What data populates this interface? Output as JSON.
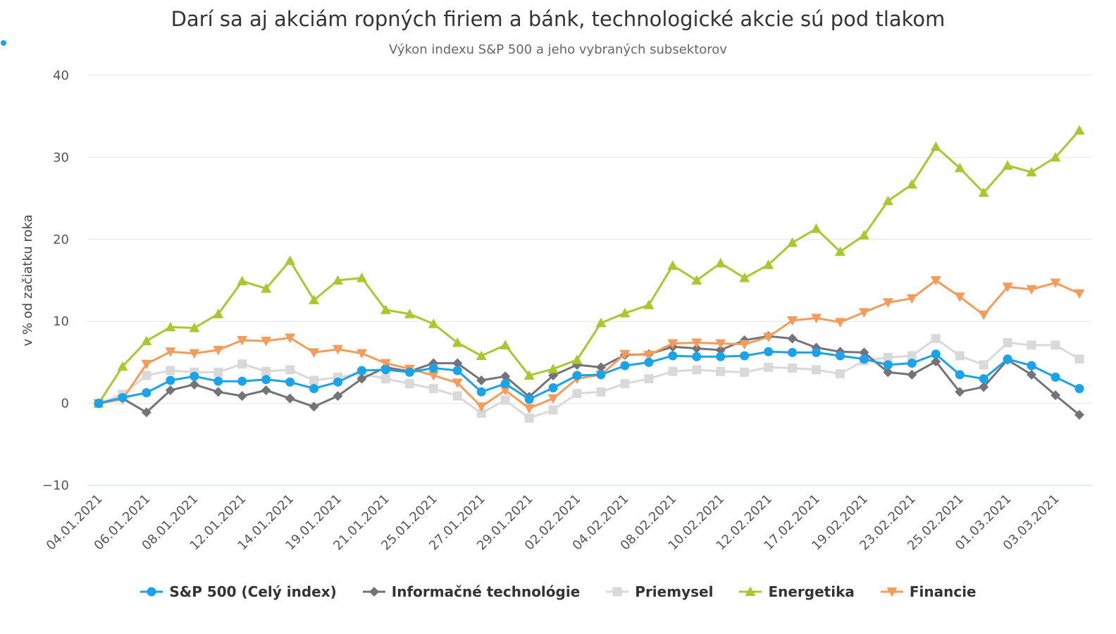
{
  "header": {
    "title": "Darí sa aj akciám ropných firiem a bánk, technologické akcie sú pod tlakom",
    "subtitle": "Výkon indexu S&P 500 a jeho vybraných subsektorov",
    "dot_color": "#1aa3e8"
  },
  "chart_data": {
    "type": "line",
    "title": "Darí sa aj akciám ropných firiem a bánk, technologické akcie sú pod tlakom",
    "subtitle": "Výkon indexu S&P 500 a jeho vybraných subsektorov",
    "ylabel": "v % od začiatku roka",
    "xlabel": "",
    "ylim": [
      -10,
      40
    ],
    "yticks": [
      -10,
      0,
      10,
      20,
      30,
      40
    ],
    "ytick_labels": [
      "−10",
      "0",
      "10",
      "20",
      "30",
      "40"
    ],
    "grid": true,
    "legend_position": "bottom",
    "x": [
      "04.01.2021",
      "05.01.2021",
      "06.01.2021",
      "07.01.2021",
      "08.01.2021",
      "11.01.2021",
      "12.01.2021",
      "13.01.2021",
      "14.01.2021",
      "15.01.2021",
      "19.01.2021",
      "20.01.2021",
      "21.01.2021",
      "22.01.2021",
      "25.01.2021",
      "26.01.2021",
      "27.01.2021",
      "28.01.2021",
      "29.01.2021",
      "01.02.2021",
      "02.02.2021",
      "03.02.2021",
      "04.02.2021",
      "05.02.2021",
      "08.02.2021",
      "09.02.2021",
      "10.02.2021",
      "11.02.2021",
      "12.02.2021",
      "16.02.2021",
      "17.02.2021",
      "18.02.2021",
      "19.02.2021",
      "22.02.2021",
      "23.02.2021",
      "24.02.2021",
      "25.02.2021",
      "26.02.2021",
      "01.03.2021",
      "02.03.2021",
      "03.03.2021",
      "04.03.2021"
    ],
    "xtick_labels": [
      "04.01.2021",
      "06.01.2021",
      "08.01.2021",
      "12.01.2021",
      "14.01.2021",
      "19.01.2021",
      "21.01.2021",
      "25.01.2021",
      "27.01.2021",
      "29.01.2021",
      "02.02.2021",
      "04.02.2021",
      "08.02.2021",
      "10.02.2021",
      "12.02.2021",
      "17.02.2021",
      "19.02.2021",
      "23.02.2021",
      "25.02.2021",
      "01.03.2021",
      "03.03.2021"
    ],
    "series": [
      {
        "name": "S&P 500 (Celý index)",
        "color": "#1aa3e8",
        "marker": "circle",
        "values": [
          0.0,
          0.7,
          1.3,
          2.8,
          3.3,
          2.7,
          2.7,
          2.9,
          2.6,
          1.8,
          2.6,
          4.0,
          4.1,
          3.8,
          4.3,
          4.0,
          1.4,
          2.4,
          0.5,
          1.9,
          3.4,
          3.5,
          4.6,
          5.0,
          5.8,
          5.7,
          5.7,
          5.8,
          6.3,
          6.2,
          6.2,
          5.8,
          5.4,
          4.7,
          4.9,
          6.0,
          3.5,
          3.0,
          5.4,
          4.6,
          3.2,
          1.8
        ]
      },
      {
        "name": "Informačné technológie",
        "color": "#737478",
        "marker": "diamond",
        "values": [
          0.0,
          0.6,
          -1.1,
          1.6,
          2.3,
          1.4,
          0.9,
          1.6,
          0.6,
          -0.4,
          0.9,
          3.0,
          4.4,
          3.9,
          4.9,
          4.9,
          2.8,
          3.3,
          0.8,
          3.4,
          4.7,
          4.4,
          5.9,
          6.0,
          6.9,
          6.7,
          6.5,
          7.7,
          8.2,
          7.9,
          6.8,
          6.3,
          6.2,
          3.8,
          3.5,
          5.1,
          1.4,
          2.0,
          5.3,
          3.5,
          1.0,
          -1.4
        ]
      },
      {
        "name": "Priemysel",
        "color": "#d9d9d9",
        "marker": "square",
        "values": [
          0.0,
          1.1,
          3.4,
          4.0,
          3.8,
          3.8,
          4.8,
          3.9,
          4.1,
          2.8,
          3.2,
          3.6,
          3.0,
          2.4,
          1.8,
          0.9,
          -1.2,
          0.4,
          -1.8,
          -0.8,
          1.2,
          1.4,
          2.4,
          3.0,
          3.9,
          4.1,
          3.9,
          3.8,
          4.4,
          4.3,
          4.1,
          3.6,
          5.2,
          5.6,
          5.8,
          7.9,
          5.8,
          4.7,
          7.4,
          7.1,
          7.1,
          5.4
        ]
      },
      {
        "name": "Energetika",
        "color": "#a7c82f",
        "marker": "triangle",
        "values": [
          0.0,
          4.5,
          7.6,
          9.3,
          9.2,
          10.9,
          14.9,
          14.0,
          17.4,
          12.6,
          15.0,
          15.3,
          11.4,
          10.9,
          9.7,
          7.4,
          5.8,
          7.1,
          3.4,
          4.2,
          5.3,
          9.8,
          11.0,
          12.0,
          16.8,
          15.0,
          17.1,
          15.3,
          16.9,
          19.6,
          21.3,
          18.5,
          20.5,
          24.7,
          26.7,
          31.3,
          28.7,
          25.7,
          29.0,
          28.2,
          30.0,
          33.3
        ]
      },
      {
        "name": "Financie",
        "color": "#f39c5b",
        "marker": "triangle-down",
        "values": [
          0.0,
          0.5,
          4.8,
          6.3,
          6.1,
          6.5,
          7.7,
          7.6,
          8.0,
          6.2,
          6.6,
          6.1,
          4.9,
          4.2,
          3.4,
          2.5,
          -0.4,
          1.6,
          -0.6,
          0.6,
          3.0,
          3.5,
          6.0,
          5.9,
          7.3,
          7.4,
          7.3,
          7.2,
          8.1,
          10.1,
          10.4,
          9.9,
          11.1,
          12.3,
          12.8,
          15.0,
          13.0,
          10.8,
          14.2,
          13.9,
          14.7,
          13.4
        ]
      }
    ]
  }
}
